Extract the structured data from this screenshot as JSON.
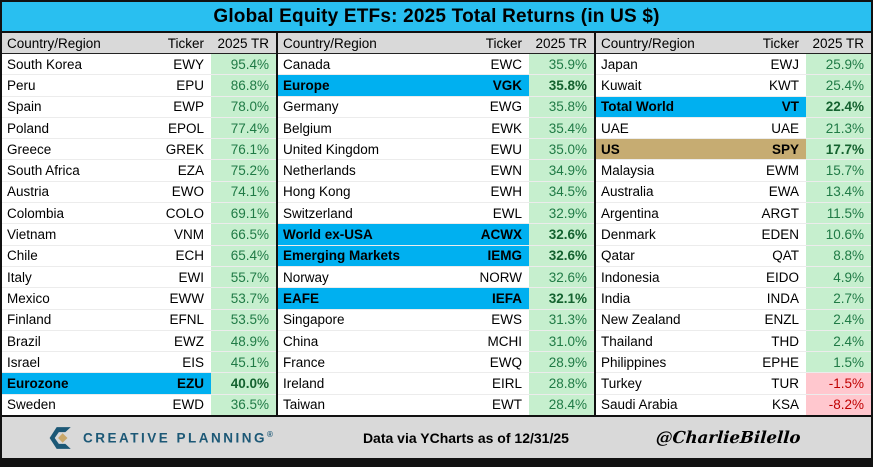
{
  "chart_data": {
    "type": "table",
    "title": "Global Equity ETFs: 2025 Total Returns (in US $)",
    "columns": [
      "Country/Region",
      "Ticker",
      "2025 TR"
    ],
    "groups": [
      {
        "rows": [
          {
            "country": "South Korea",
            "ticker": "EWY",
            "tr": "95.4%"
          },
          {
            "country": "Peru",
            "ticker": "EPU",
            "tr": "86.8%"
          },
          {
            "country": "Spain",
            "ticker": "EWP",
            "tr": "78.0%"
          },
          {
            "country": "Poland",
            "ticker": "EPOL",
            "tr": "77.4%"
          },
          {
            "country": "Greece",
            "ticker": "GREK",
            "tr": "76.1%"
          },
          {
            "country": "South Africa",
            "ticker": "EZA",
            "tr": "75.2%"
          },
          {
            "country": "Austria",
            "ticker": "EWO",
            "tr": "74.1%"
          },
          {
            "country": "Colombia",
            "ticker": "COLO",
            "tr": "69.1%"
          },
          {
            "country": "Vietnam",
            "ticker": "VNM",
            "tr": "66.5%"
          },
          {
            "country": "Chile",
            "ticker": "ECH",
            "tr": "65.4%"
          },
          {
            "country": "Italy",
            "ticker": "EWI",
            "tr": "55.7%"
          },
          {
            "country": "Mexico",
            "ticker": "EWW",
            "tr": "53.7%"
          },
          {
            "country": "Finland",
            "ticker": "EFNL",
            "tr": "53.5%"
          },
          {
            "country": "Brazil",
            "ticker": "EWZ",
            "tr": "48.9%"
          },
          {
            "country": "Israel",
            "ticker": "EIS",
            "tr": "45.1%"
          },
          {
            "country": "Eurozone",
            "ticker": "EZU",
            "tr": "40.0%",
            "highlight": "cyan"
          },
          {
            "country": "Sweden",
            "ticker": "EWD",
            "tr": "36.5%"
          }
        ]
      },
      {
        "rows": [
          {
            "country": "Canada",
            "ticker": "EWC",
            "tr": "35.9%"
          },
          {
            "country": "Europe",
            "ticker": "VGK",
            "tr": "35.8%",
            "highlight": "cyan"
          },
          {
            "country": "Germany",
            "ticker": "EWG",
            "tr": "35.8%"
          },
          {
            "country": "Belgium",
            "ticker": "EWK",
            "tr": "35.4%"
          },
          {
            "country": "United Kingdom",
            "ticker": "EWU",
            "tr": "35.0%"
          },
          {
            "country": "Netherlands",
            "ticker": "EWN",
            "tr": "34.9%"
          },
          {
            "country": "Hong Kong",
            "ticker": "EWH",
            "tr": "34.5%"
          },
          {
            "country": "Switzerland",
            "ticker": "EWL",
            "tr": "32.9%"
          },
          {
            "country": "World ex-USA",
            "ticker": "ACWX",
            "tr": "32.6%",
            "highlight": "cyan"
          },
          {
            "country": "Emerging Markets",
            "ticker": "IEMG",
            "tr": "32.6%",
            "highlight": "cyan"
          },
          {
            "country": "Norway",
            "ticker": "NORW",
            "tr": "32.6%"
          },
          {
            "country": "EAFE",
            "ticker": "IEFA",
            "tr": "32.1%",
            "highlight": "cyan"
          },
          {
            "country": "Singapore",
            "ticker": "EWS",
            "tr": "31.3%"
          },
          {
            "country": "China",
            "ticker": "MCHI",
            "tr": "31.0%"
          },
          {
            "country": "France",
            "ticker": "EWQ",
            "tr": "28.9%"
          },
          {
            "country": "Ireland",
            "ticker": "EIRL",
            "tr": "28.8%"
          },
          {
            "country": "Taiwan",
            "ticker": "EWT",
            "tr": "28.4%"
          }
        ]
      },
      {
        "rows": [
          {
            "country": "Japan",
            "ticker": "EWJ",
            "tr": "25.9%"
          },
          {
            "country": "Kuwait",
            "ticker": "KWT",
            "tr": "25.4%"
          },
          {
            "country": "Total World",
            "ticker": "VT",
            "tr": "22.4%",
            "highlight": "cyan"
          },
          {
            "country": "UAE",
            "ticker": "UAE",
            "tr": "21.3%"
          },
          {
            "country": "US",
            "ticker": "SPY",
            "tr": "17.7%",
            "highlight": "tan"
          },
          {
            "country": "Malaysia",
            "ticker": "EWM",
            "tr": "15.7%"
          },
          {
            "country": "Australia",
            "ticker": "EWA",
            "tr": "13.4%"
          },
          {
            "country": "Argentina",
            "ticker": "ARGT",
            "tr": "11.5%"
          },
          {
            "country": "Denmark",
            "ticker": "EDEN",
            "tr": "10.6%"
          },
          {
            "country": "Qatar",
            "ticker": "QAT",
            "tr": "8.8%"
          },
          {
            "country": "Indonesia",
            "ticker": "EIDO",
            "tr": "4.9%"
          },
          {
            "country": "India",
            "ticker": "INDA",
            "tr": "2.7%"
          },
          {
            "country": "New Zealand",
            "ticker": "ENZL",
            "tr": "2.4%"
          },
          {
            "country": "Thailand",
            "ticker": "THD",
            "tr": "2.4%"
          },
          {
            "country": "Philippines",
            "ticker": "EPHE",
            "tr": "1.5%"
          },
          {
            "country": "Turkey",
            "ticker": "TUR",
            "tr": "-1.5%"
          },
          {
            "country": "Saudi Arabia",
            "ticker": "KSA",
            "tr": "-8.2%"
          }
        ]
      }
    ]
  },
  "footer": {
    "brand": "CREATIVE PLANNING",
    "brand_mark": "®",
    "data_note": "Data via YCharts as of 12/31/25",
    "handle": "@CharlieBilello"
  },
  "colors": {
    "title_bg": "#29BFF0",
    "highlight_cyan": "#00B0F0",
    "highlight_tan": "#C6AC72",
    "positive_bg": "#C6EFCE",
    "positive_text": "#1F7A45",
    "negative_bg": "#FFC7CE",
    "negative_text": "#C00000",
    "header_bg": "#D9D9D9",
    "brand_navy": "#1C5876",
    "brand_gold": "#C9A86A"
  }
}
